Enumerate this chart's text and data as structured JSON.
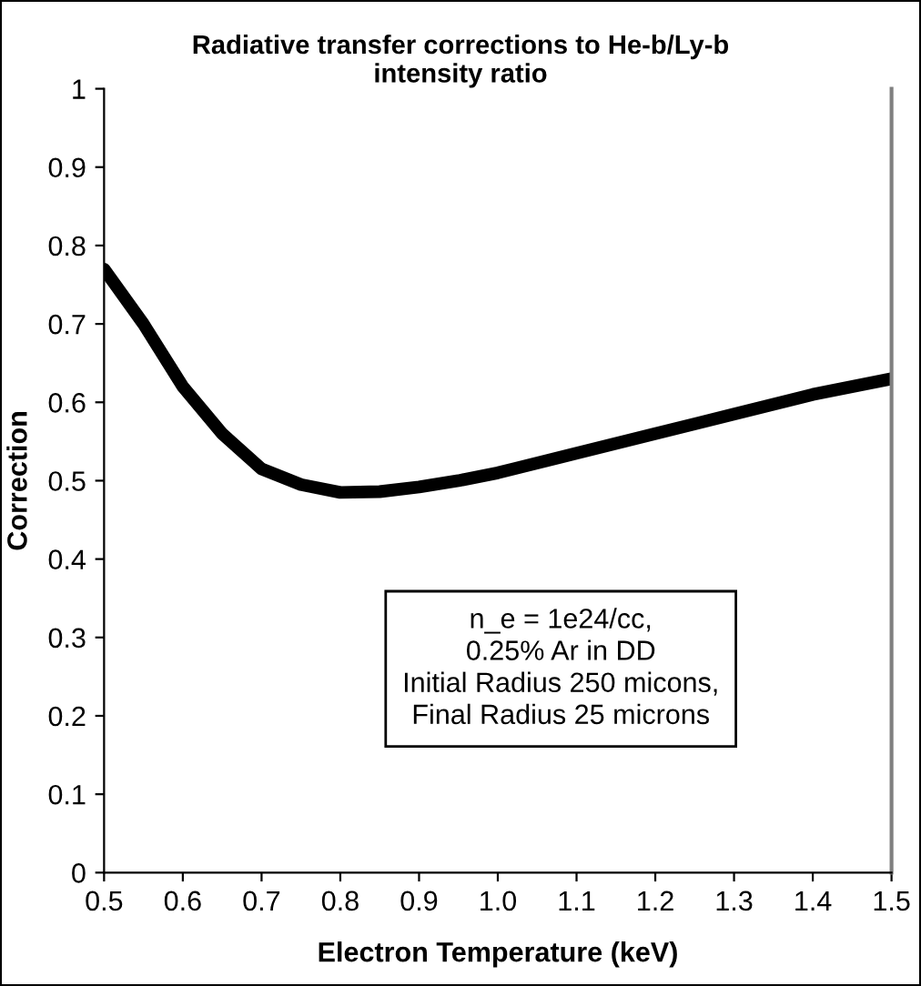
{
  "chart_data": {
    "type": "line",
    "title": "Radiative transfer corrections to He-b/Ly-b\nintensity ratio",
    "xlabel": "Electron Temperature (keV)",
    "ylabel": "Correction",
    "x": [
      0.5,
      0.55,
      0.6,
      0.65,
      0.7,
      0.75,
      0.8,
      0.85,
      0.9,
      0.95,
      1.0,
      1.1,
      1.2,
      1.3,
      1.4,
      1.5
    ],
    "series": [
      {
        "color": "#000000",
        "values": [
          0.77,
          0.7,
          0.62,
          0.56,
          0.515,
          0.495,
          0.485,
          0.486,
          0.492,
          0.5,
          0.51,
          0.535,
          0.56,
          0.585,
          0.61,
          0.63
        ]
      }
    ],
    "xlim": [
      0.5,
      1.5
    ],
    "ylim": [
      0,
      1
    ],
    "xticks": [
      0.5,
      0.6,
      0.7,
      0.8,
      0.9,
      {
        "value": 1.0,
        "label": "1.0"
      },
      1.1,
      1.2,
      1.3,
      1.4,
      1.5
    ],
    "yticks": [
      0,
      0.1,
      0.2,
      0.3,
      0.4,
      0.5,
      0.6,
      0.7,
      0.8,
      0.9,
      1
    ],
    "annotations": [
      "n_e = 1e24/cc,\n0.25% Ar in DD\nInitial Radius 250 micons,\nFinal Radius 25 microns"
    ],
    "marker": "none",
    "line_style": "solid"
  }
}
